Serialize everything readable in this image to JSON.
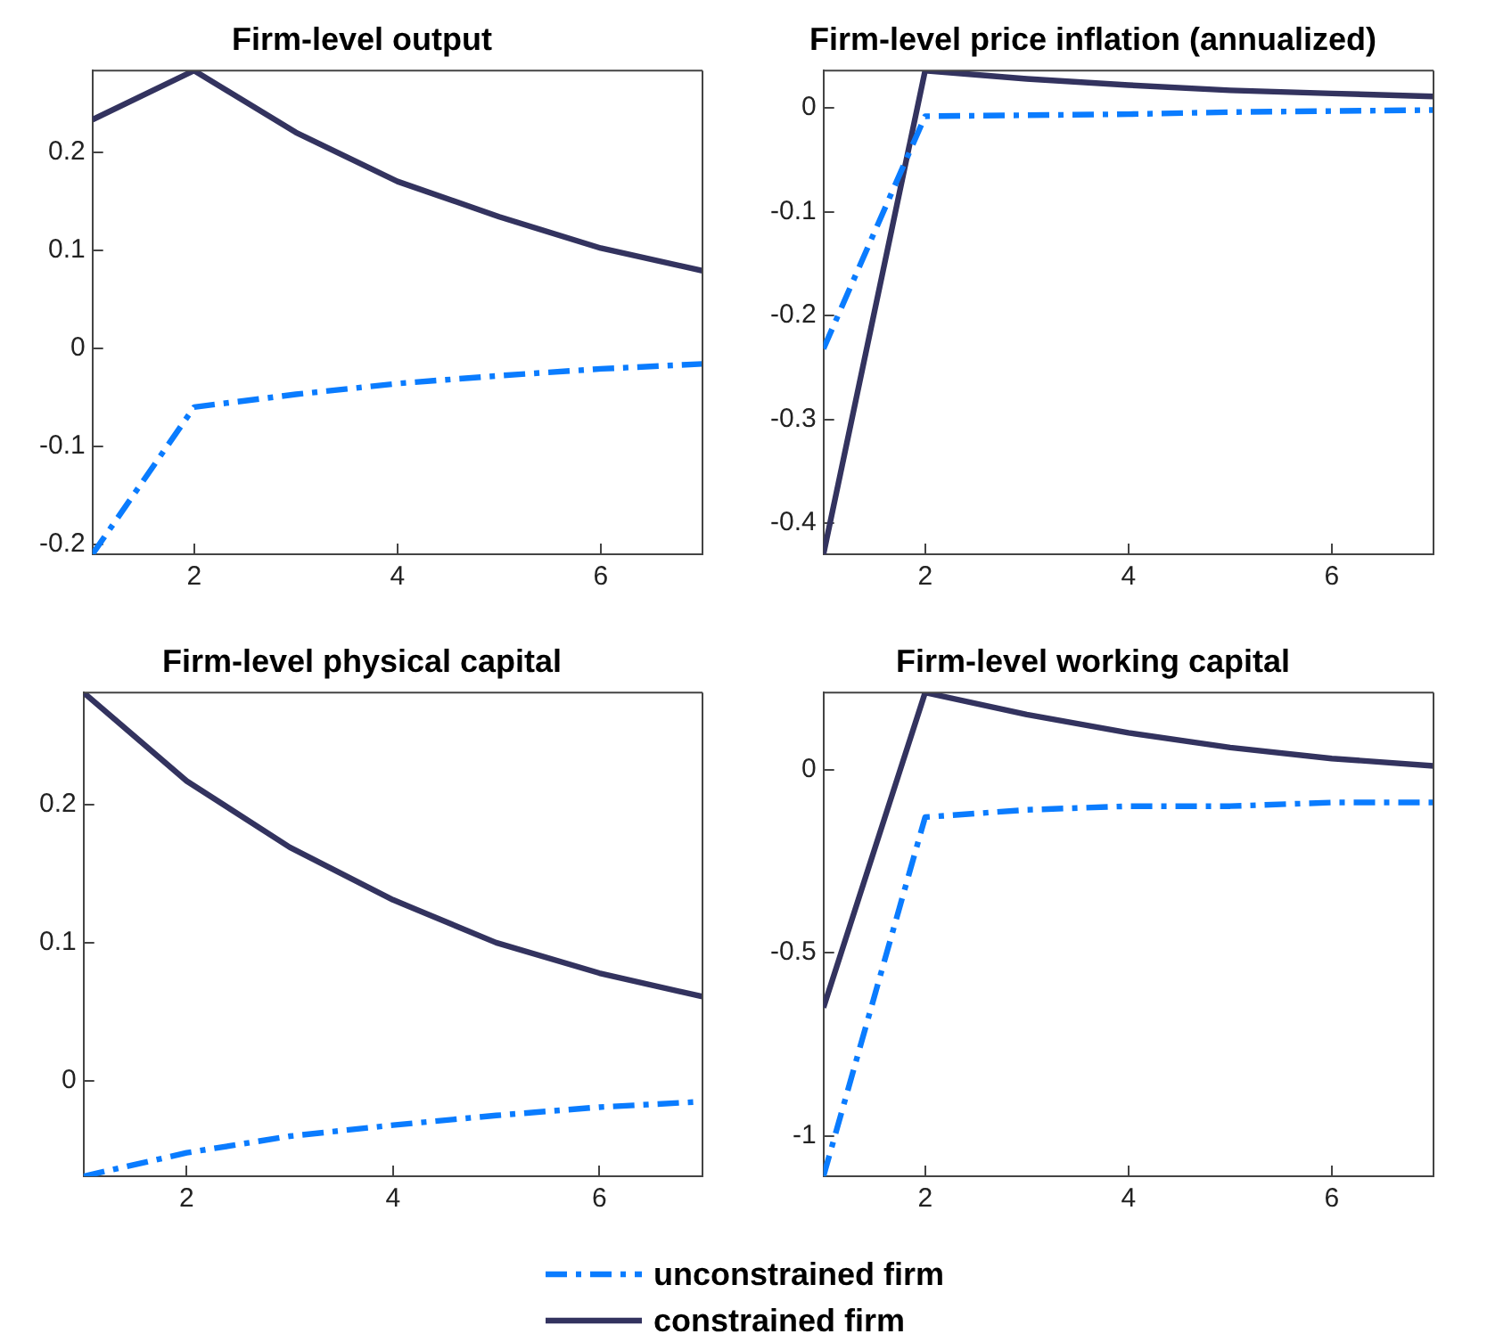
{
  "chart_data": [
    {
      "type": "line",
      "title": "Firm-level output",
      "x": [
        1,
        2,
        3,
        4,
        5,
        6,
        7
      ],
      "xlim": [
        1,
        7
      ],
      "xticks": [
        2,
        4,
        6
      ],
      "ylim": [
        -0.21,
        0.283
      ],
      "yticks": [
        -0.2,
        -0.1,
        0,
        0.1,
        0.2
      ],
      "grid": false,
      "legend": "bottom",
      "marker": "none",
      "series": [
        {
          "name": "unconstrained firm",
          "color": "#0a7cff",
          "line_style": "dashed",
          "values": [
            -0.21,
            -0.06,
            -0.047,
            -0.036,
            -0.028,
            -0.021,
            -0.016
          ]
        },
        {
          "name": "constrained firm",
          "color": "#33335f",
          "line_style": "solid",
          "values": [
            0.233,
            0.283,
            0.22,
            0.17,
            0.134,
            0.102,
            0.079
          ]
        }
      ]
    },
    {
      "type": "line",
      "title": "Firm-level price inflation (annualized)",
      "x": [
        1,
        2,
        3,
        4,
        5,
        6,
        7
      ],
      "xlim": [
        1,
        7
      ],
      "xticks": [
        2,
        4,
        6
      ],
      "ylim": [
        -0.43,
        0.036
      ],
      "yticks": [
        -0.4,
        -0.3,
        -0.2,
        -0.1,
        0
      ],
      "grid": false,
      "marker": "none",
      "series": [
        {
          "color": "#0a7cff",
          "line_style": "dashed",
          "values": [
            -0.232,
            -0.008,
            -0.007,
            -0.006,
            -0.004,
            -0.003,
            -0.002
          ]
        },
        {
          "color": "#33335f",
          "line_style": "solid",
          "values": [
            -0.43,
            0.036,
            0.028,
            0.022,
            0.017,
            0.014,
            0.011
          ]
        }
      ]
    },
    {
      "type": "line",
      "title": "Firm-level physical capital",
      "x": [
        1,
        2,
        3,
        4,
        5,
        6,
        7
      ],
      "xlim": [
        1,
        7
      ],
      "xticks": [
        2,
        4,
        6
      ],
      "ylim": [
        -0.069,
        0.281
      ],
      "yticks": [
        0,
        0.1,
        0.2
      ],
      "grid": false,
      "marker": "none",
      "series": [
        {
          "color": "#0a7cff",
          "line_style": "dashed",
          "values": [
            -0.069,
            -0.052,
            -0.04,
            -0.032,
            -0.025,
            -0.019,
            -0.015
          ]
        },
        {
          "color": "#33335f",
          "line_style": "solid",
          "values": [
            0.281,
            0.217,
            0.169,
            0.131,
            0.1,
            0.078,
            0.061
          ]
        }
      ]
    },
    {
      "type": "line",
      "title": "Firm-level working capital",
      "x": [
        1,
        2,
        3,
        4,
        5,
        6,
        7
      ],
      "xlim": [
        1,
        7
      ],
      "xticks": [
        2,
        4,
        6
      ],
      "ylim": [
        -1.11,
        0.21
      ],
      "yticks": [
        -1,
        -0.5,
        0
      ],
      "grid": false,
      "marker": "none",
      "series": [
        {
          "color": "#0a7cff",
          "line_style": "dashed",
          "values": [
            -1.11,
            -0.13,
            -0.11,
            -0.1,
            -0.1,
            -0.09,
            -0.09
          ]
        },
        {
          "color": "#33335f",
          "line_style": "solid",
          "values": [
            -0.65,
            0.21,
            0.15,
            0.1,
            0.06,
            0.03,
            0.01
          ]
        }
      ]
    }
  ]
}
